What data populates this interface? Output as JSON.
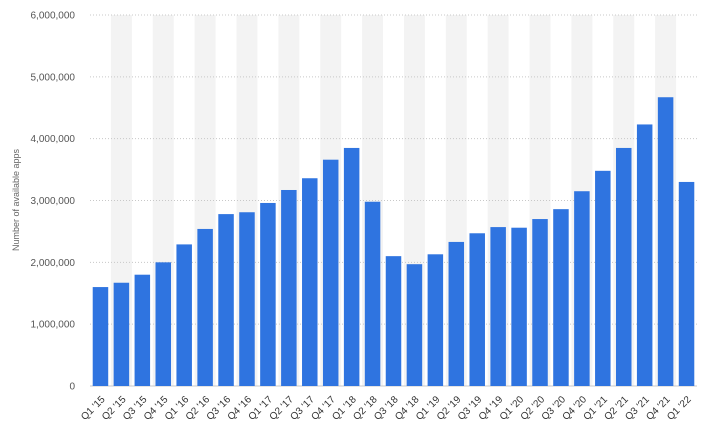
{
  "chart_data": {
    "type": "bar",
    "title": "",
    "xlabel": "",
    "ylabel": "Number of available apps",
    "ylim": [
      0,
      6000000
    ],
    "y_ticks": [
      {
        "value": 0,
        "label": "0"
      },
      {
        "value": 1000000,
        "label": "1,000,000"
      },
      {
        "value": 2000000,
        "label": "2,000,000"
      },
      {
        "value": 3000000,
        "label": "3,000,000"
      },
      {
        "value": 4000000,
        "label": "4,000,000"
      },
      {
        "value": 5000000,
        "label": "5,000,000"
      },
      {
        "value": 6000000,
        "label": "6,000,000"
      }
    ],
    "grid": true,
    "bar_color": "#2f74e0",
    "stripe_color": "#f3f3f3",
    "categories": [
      "Q1 '15",
      "Q2 '15",
      "Q3 '15",
      "Q4 '15",
      "Q1 '16",
      "Q2 '16",
      "Q3 '16",
      "Q4 '16",
      "Q1 '17",
      "Q2 '17",
      "Q3 '17",
      "Q4 '17",
      "Q1 '18",
      "Q2 '18",
      "Q3 '18",
      "Q4 '18",
      "Q1 '19",
      "Q2 '19",
      "Q3 '19",
      "Q4 '19",
      "Q1 '20",
      "Q2 '20",
      "Q3 '20",
      "Q4 '20",
      "Q1 '21",
      "Q2 '21",
      "Q3 '21",
      "Q4 '21",
      "Q1 '22"
    ],
    "values": [
      1600000,
      1670000,
      1800000,
      2000000,
      2290000,
      2540000,
      2780000,
      2810000,
      2960000,
      3170000,
      3360000,
      3660000,
      3850000,
      2980000,
      2100000,
      1970000,
      2130000,
      2330000,
      2470000,
      2570000,
      2560000,
      2700000,
      2860000,
      3150000,
      3480000,
      3850000,
      4230000,
      4670000,
      3300000
    ]
  }
}
